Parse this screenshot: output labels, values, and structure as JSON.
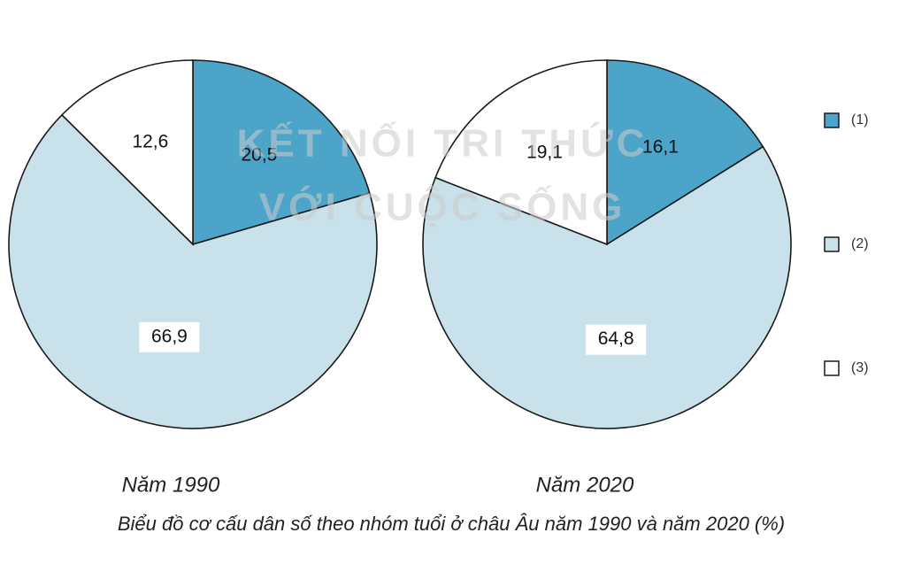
{
  "chart_data": [
    {
      "type": "pie",
      "title": "Năm 1990",
      "values": [
        20.5,
        66.9,
        12.6
      ],
      "value_labels": [
        "20,5",
        "66,9",
        "12,6"
      ]
    },
    {
      "type": "pie",
      "title": "Năm 2020",
      "values": [
        16.1,
        64.8,
        19.1
      ],
      "value_labels": [
        "16,1",
        "64,8",
        "19,1"
      ]
    }
  ],
  "legend": {
    "labels": [
      "(1)",
      "(2)",
      "(3)"
    ],
    "colors": [
      "#4da4c9",
      "#c8e1ea",
      "#ffffff"
    ]
  },
  "caption": "Biểu đồ cơ cấu dân số theo nhóm tuổi ở châu Âu năm 1990 và năm 2020 (%)",
  "watermark": [
    "KẾT NỐI TRI THỨC",
    "VỚI CUỘC SỐNG"
  ]
}
